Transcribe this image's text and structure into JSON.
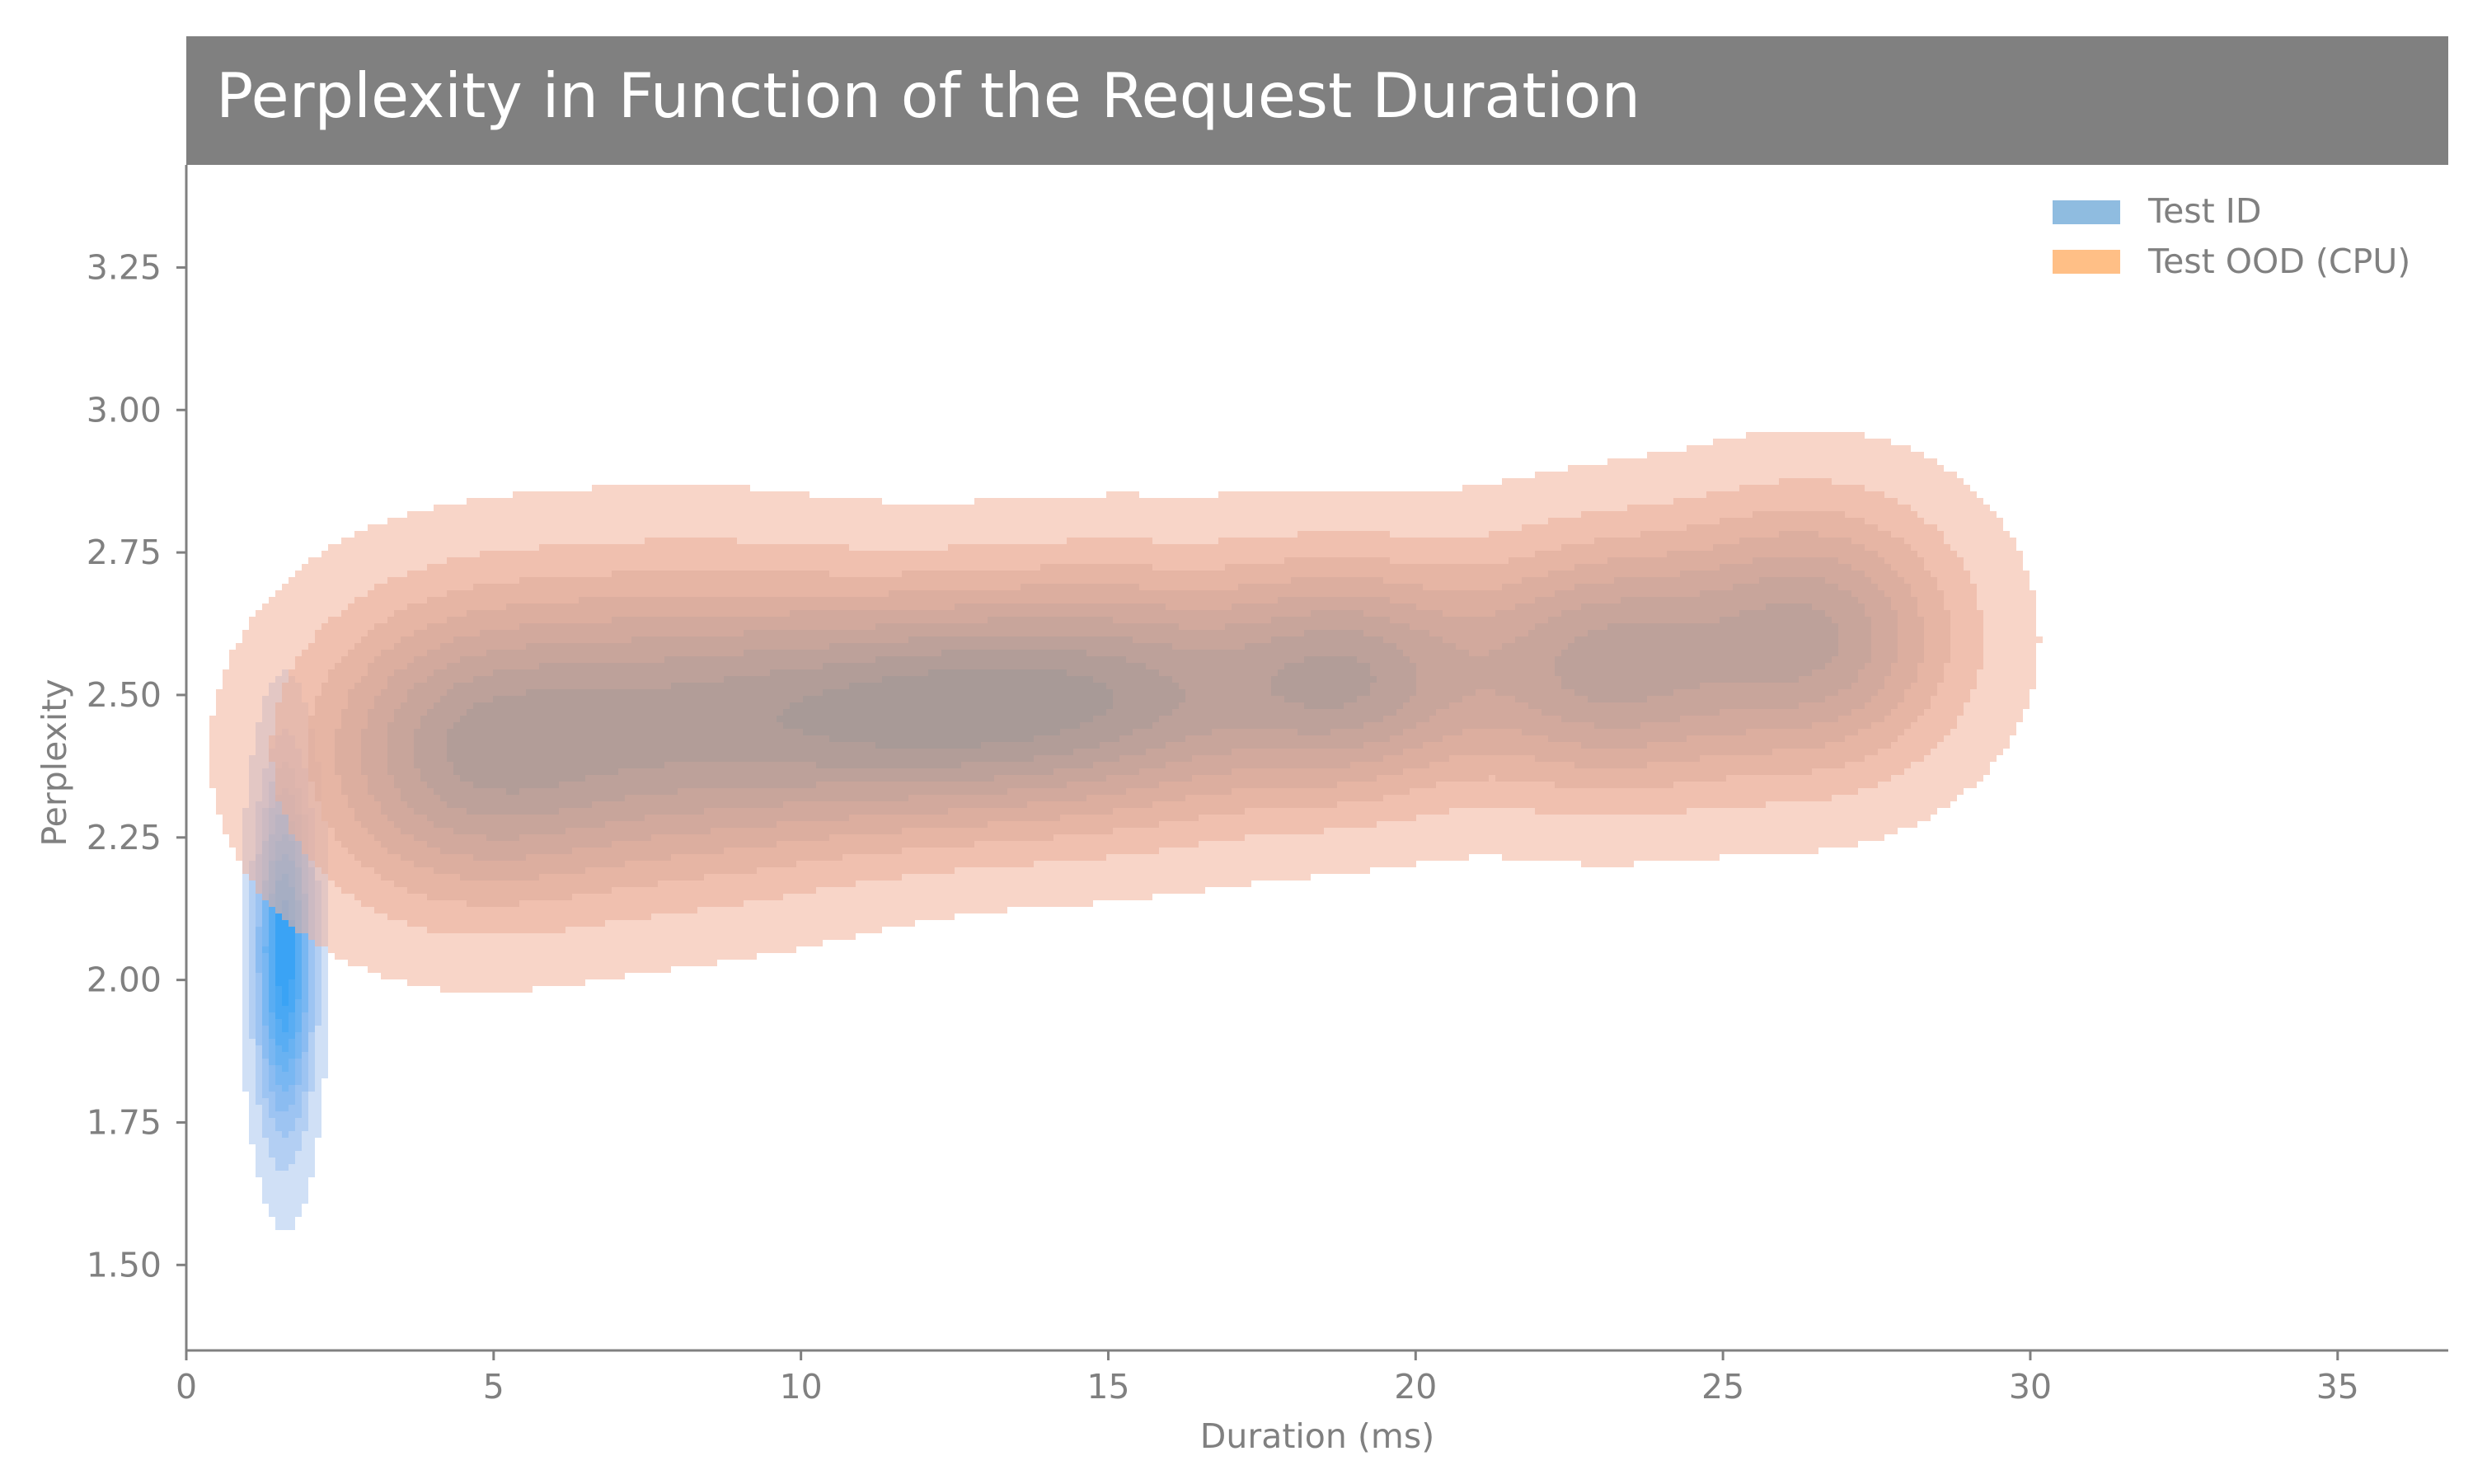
{
  "chart_data": {
    "type": "kde-contour",
    "title": "Perplexity in Function of the Request Duration",
    "xlabel": "Duration (ms)",
    "ylabel": "Perplexity",
    "xlim": [
      0,
      36.8
    ],
    "ylim": [
      1.35,
      3.43
    ],
    "x_ticks": [
      0,
      5,
      10,
      15,
      20,
      25,
      30,
      35
    ],
    "y_ticks": [
      1.5,
      1.75,
      2.0,
      2.25,
      2.5,
      2.75,
      3.0,
      3.25
    ],
    "y_tick_labels": [
      "1.50",
      "1.75",
      "2.00",
      "2.25",
      "2.50",
      "2.75",
      "3.00",
      "3.25"
    ],
    "grid": false,
    "legend_position": "top-right",
    "series": [
      {
        "name": "Test ID",
        "color": "#8fbce0",
        "fill_light": "#a9c6ef",
        "fill_dark": "#2e9ff5",
        "line_color": "#4a90d0",
        "modes": [
          {
            "x": 1.6,
            "y": 2.05,
            "sx": 0.3,
            "sy": 0.2
          }
        ],
        "levels": 9
      },
      {
        "name": "Test OOD (CPU)",
        "color": "#ffbf86",
        "fill_light": "#f3b29b",
        "fill_dark": "#a09898",
        "line_color": "#c07a5a",
        "modes": [
          {
            "x": 4.5,
            "y": 2.4,
            "sx": 1.8,
            "sy": 0.18
          },
          {
            "x": 8.2,
            "y": 2.45,
            "sx": 2.2,
            "sy": 0.18
          },
          {
            "x": 12.0,
            "y": 2.47,
            "sx": 2.0,
            "sy": 0.14
          },
          {
            "x": 15.3,
            "y": 2.5,
            "sx": 2.0,
            "sy": 0.15
          },
          {
            "x": 19.0,
            "y": 2.53,
            "sx": 1.5,
            "sy": 0.14
          },
          {
            "x": 23.0,
            "y": 2.55,
            "sx": 1.6,
            "sy": 0.15
          },
          {
            "x": 26.5,
            "y": 2.6,
            "sx": 1.6,
            "sy": 0.16
          }
        ],
        "levels": 9
      }
    ]
  }
}
